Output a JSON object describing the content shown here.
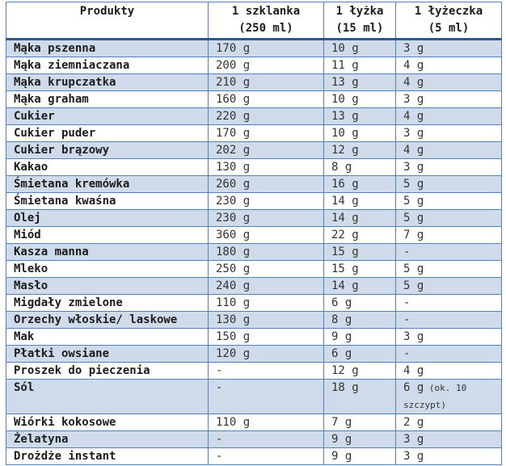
{
  "chart_data": {
    "type": "table",
    "columns": [
      {
        "label": "Produkty",
        "sublabel": ""
      },
      {
        "label": "1 szklanka",
        "sublabel": "(250 ml)"
      },
      {
        "label": "1 łyżka",
        "sublabel": "(15 ml)"
      },
      {
        "label": "1 łyżeczka",
        "sublabel": "(5 ml)"
      }
    ],
    "rows": [
      {
        "product": "Mąka pszenna",
        "szklanka": "170 g",
        "lyzka": "10 g",
        "lyzeczka": "3 g"
      },
      {
        "product": "Mąka ziemniaczana",
        "szklanka": "200 g",
        "lyzka": "11 g",
        "lyzeczka": "4 g"
      },
      {
        "product": "Mąka krupczatka",
        "szklanka": "210 g",
        "lyzka": "13 g",
        "lyzeczka": "4 g"
      },
      {
        "product": "Mąka graham",
        "szklanka": "160 g",
        "lyzka": "10 g",
        "lyzeczka": "3 g"
      },
      {
        "product": "Cukier",
        "szklanka": "220 g",
        "lyzka": "13 g",
        "lyzeczka": "4 g"
      },
      {
        "product": "Cukier puder",
        "szklanka": "170 g",
        "lyzka": "10 g",
        "lyzeczka": "3 g"
      },
      {
        "product": "Cukier brązowy",
        "szklanka": "202 g",
        "lyzka": "12 g",
        "lyzeczka": "4 g"
      },
      {
        "product": "Kakao",
        "szklanka": "130 g",
        "lyzka": "8 g",
        "lyzeczka": "3 g"
      },
      {
        "product": "Śmietana kremówka",
        "szklanka": "260 g",
        "lyzka": "16 g",
        "lyzeczka": "5 g"
      },
      {
        "product": "Śmietana kwaśna",
        "szklanka": "230 g",
        "lyzka": "14 g",
        "lyzeczka": "5 g"
      },
      {
        "product": "Olej",
        "szklanka": "230 g",
        "lyzka": "14 g",
        "lyzeczka": "5 g"
      },
      {
        "product": "Miód",
        "szklanka": "360 g",
        "lyzka": "22 g",
        "lyzeczka": "7 g"
      },
      {
        "product": "Kasza manna",
        "szklanka": "180 g",
        "lyzka": "15 g",
        "lyzeczka": "-"
      },
      {
        "product": "Mleko",
        "szklanka": "250 g",
        "lyzka": "15 g",
        "lyzeczka": "5 g"
      },
      {
        "product": "Masło",
        "szklanka": "240 g",
        "lyzka": "14 g",
        "lyzeczka": "5 g"
      },
      {
        "product": "Migdały zmielone",
        "szklanka": "110 g",
        "lyzka": "6 g",
        "lyzeczka": "-"
      },
      {
        "product": "Orzechy włoskie/ laskowe",
        "szklanka": "130 g",
        "lyzka": "8 g",
        "lyzeczka": "-"
      },
      {
        "product": "Mak",
        "szklanka": "150 g",
        "lyzka": "9 g",
        "lyzeczka": "3 g"
      },
      {
        "product": "Płatki owsiane",
        "szklanka": "120 g",
        "lyzka": "6 g",
        "lyzeczka": "-"
      },
      {
        "product": "Proszek do pieczenia",
        "szklanka": "-",
        "lyzka": "12 g",
        "lyzeczka": "4 g"
      },
      {
        "product": "Sól",
        "szklanka": "-",
        "lyzka": "18 g",
        "lyzeczka": "6 g",
        "lyzeczka_note": "(ok. 10 szczypt)"
      },
      {
        "product": "Wiórki kokosowe",
        "szklanka": "110 g",
        "lyzka": "7 g",
        "lyzeczka": "2 g"
      },
      {
        "product": "Żelatyna",
        "szklanka": "-",
        "lyzka": "9 g",
        "lyzeczka": "3 g"
      },
      {
        "product": "Drożdże instant",
        "szklanka": "-",
        "lyzka": "9 g",
        "lyzeczka": "3 g"
      }
    ]
  },
  "colors": {
    "grid": "#4f81bd",
    "rule": "#2e5a94",
    "stripe": "#cfdbea",
    "text": "#1c1c1c",
    "value_text": "#333333"
  }
}
